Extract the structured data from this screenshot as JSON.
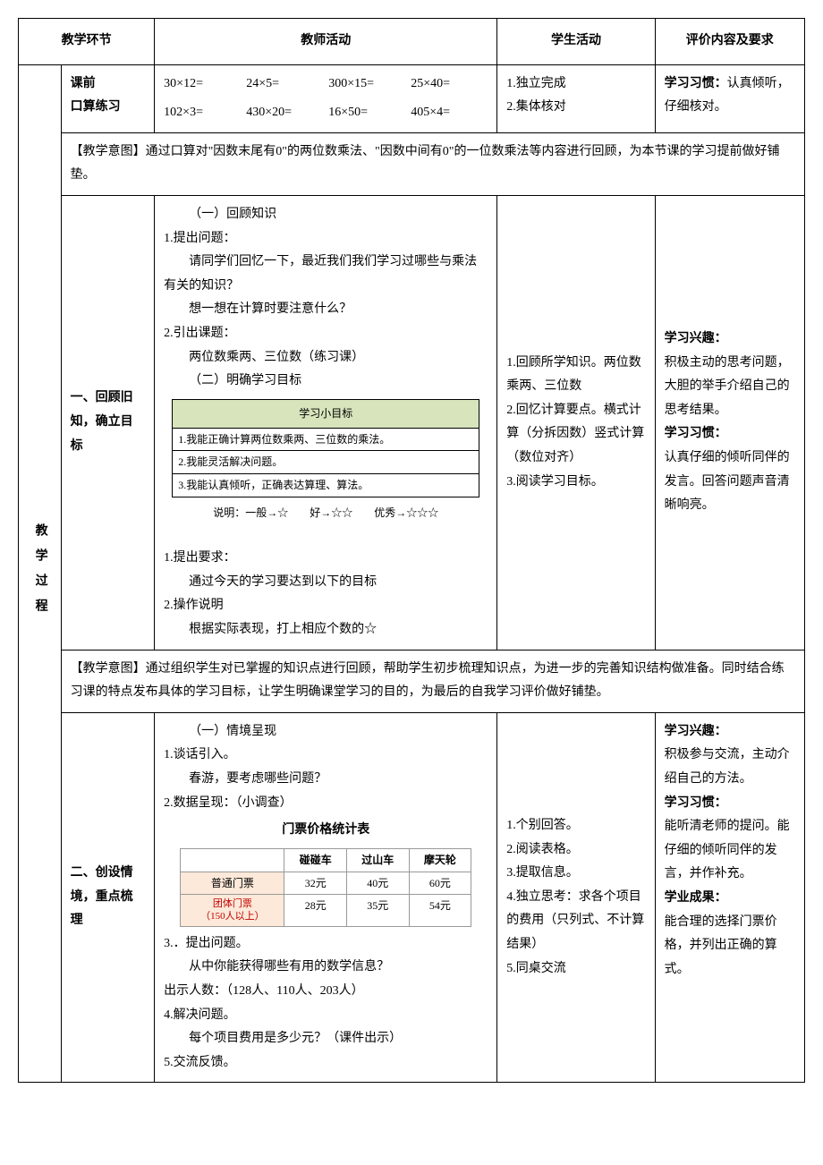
{
  "headers": {
    "phase": "教学环节",
    "teacher": "教师活动",
    "student": "学生活动",
    "eval": "评价内容及要求"
  },
  "side_label": "教学过程",
  "preclass": {
    "phase": "课前\n口算练习",
    "equations": [
      "30×12=",
      "24×5=",
      "300×15=",
      "25×40=",
      "102×3=",
      "430×20=",
      "16×50=",
      "405×4="
    ],
    "student1": "1.独立完成",
    "student2": "2.集体核对",
    "eval_label": "学习习惯：",
    "eval_text": "认真倾听，仔细核对。"
  },
  "intent1": "【教学意图】通过口算对\"因数末尾有0\"的两位数乘法、\"因数中间有0\"的一位数乘法等内容进行回顾，为本节课的学习提前做好铺垫。",
  "section1": {
    "phase": "一、回顾旧知，确立目标",
    "t_heading1": "（一）回顾知识",
    "t_1": "1.提出问题：",
    "t_1a": "请同学们回忆一下，最近我们我们学习过哪些与乘法有关的知识？",
    "t_1b": "想一想在计算时要注意什么？",
    "t_2": "2.引出课题：",
    "t_2a": "两位数乘两、三位数（练习课）",
    "t_heading2": "（二）明确学习目标",
    "goal_title": "学习小目标",
    "goal1": "1.我能正确计算两位数乘两、三位数的乘法。",
    "goal2": "2.我能灵活解决问题。",
    "goal3": "3.我能认真倾听，正确表达算理、算法。",
    "stars": "说明：一般→☆　　好→☆☆　　优秀→☆☆☆",
    "t_3": "1.提出要求：",
    "t_3a": "通过今天的学习要达到以下的目标",
    "t_4": "2.操作说明",
    "t_4a": "根据实际表现，打上相应个数的☆",
    "s_1": "1.回顾所学知识。两位数乘两、三位数",
    "s_2": "2.回忆计算要点。横式计算（分拆因数）竖式计算（数位对齐）",
    "s_3": "3.阅读学习目标。",
    "e_label1": "学习兴趣：",
    "e_text1": "积极主动的思考问题，大胆的举手介绍自己的思考结果。",
    "e_label2": "学习习惯：",
    "e_text2": "认真仔细的倾听同伴的发言。回答问题声音清晰响亮。"
  },
  "intent2": "【教学意图】通过组织学生对已掌握的知识点进行回顾，帮助学生初步梳理知识点，为进一步的完善知识结构做准备。同时结合练习课的特点发布具体的学习目标，让学生明确课堂学习的目的，为最后的自我学习评价做好铺垫。",
  "section2": {
    "phase": "二、创设情境，重点梳理",
    "t_heading1": "（一）情境呈现",
    "t_1": "1.谈话引入。",
    "t_1a": "春游，要考虑哪些问题？",
    "t_2": "2.数据呈现：（小调查）",
    "price_title": "门票价格统计表",
    "price_headers": [
      "",
      "碰碰车",
      "过山车",
      "摩天轮"
    ],
    "price_row1_label": "普通门票",
    "price_row1": [
      "32元",
      "40元",
      "60元"
    ],
    "price_row2_label": "团体门票\n（150人以上）",
    "price_row2": [
      "28元",
      "35元",
      "54元"
    ],
    "t_3": "3.．提出问题。",
    "t_3a": "从中你能获得哪些有用的数学信息？",
    "t_3b": "出示人数：（128人、110人、203人）",
    "t_4": "4.解决问题。",
    "t_4a": "每个项目费用是多少元？（课件出示）",
    "t_5": "5.交流反馈。",
    "s_1": "1.个别回答。",
    "s_2": "2.阅读表格。",
    "s_3": "3.提取信息。",
    "s_4": "4.独立思考：求各个项目的费用（只列式、不计算结果）",
    "s_5": "5.同桌交流",
    "e_label1": "学习兴趣：",
    "e_text1": "积极参与交流，主动介绍自己的方法。",
    "e_label2": "学习习惯：",
    "e_text2": "能听清老师的提问。能仔细的倾听同伴的发言，并作补充。",
    "e_label3": "学业成果：",
    "e_text3": "能合理的选择门票价格，并列出正确的算式。"
  }
}
